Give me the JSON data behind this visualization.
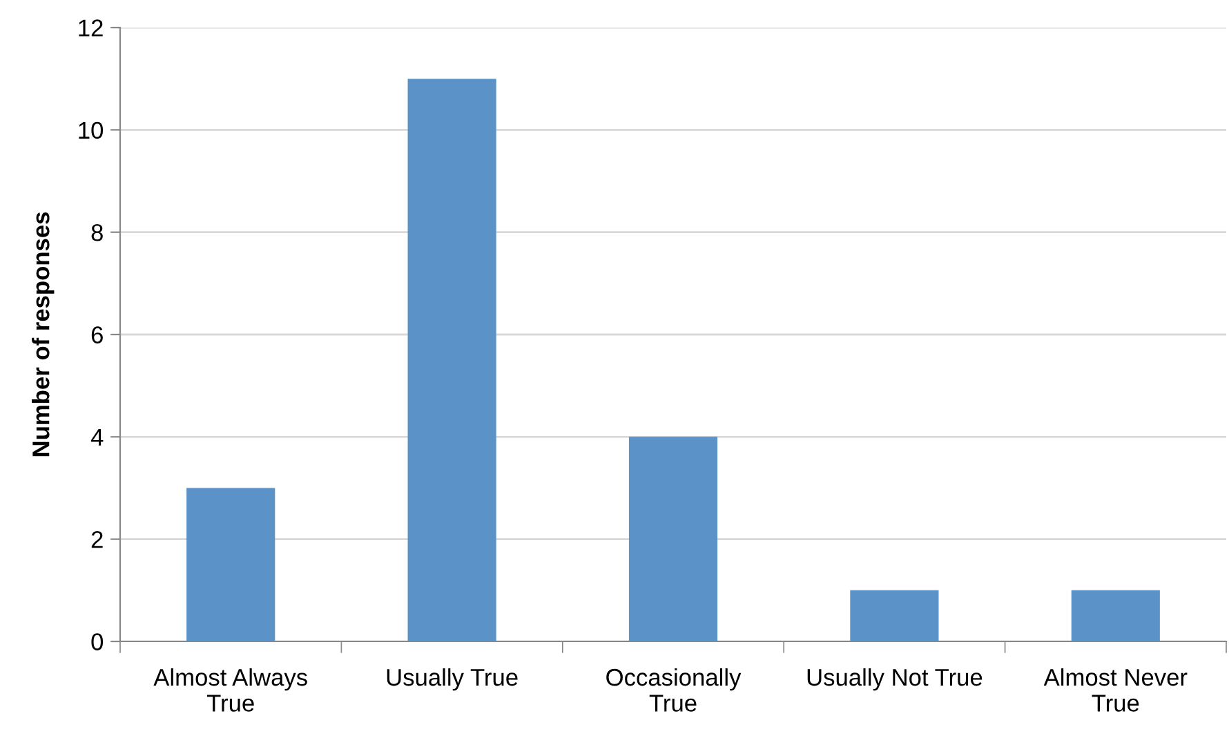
{
  "chart_data": {
    "type": "bar",
    "ylabel": "Number of responses",
    "categories": [
      "Almost Always True",
      "Usually True",
      "Occasionally True",
      "Usually Not True",
      "Almost Never True"
    ],
    "values": [
      3,
      11,
      4,
      1,
      1
    ],
    "color": "#5b92c8",
    "ylim": [
      0,
      12
    ],
    "yticks": [
      0,
      2,
      4,
      6,
      8,
      10,
      12
    ],
    "grid": "y",
    "legend": false
  }
}
